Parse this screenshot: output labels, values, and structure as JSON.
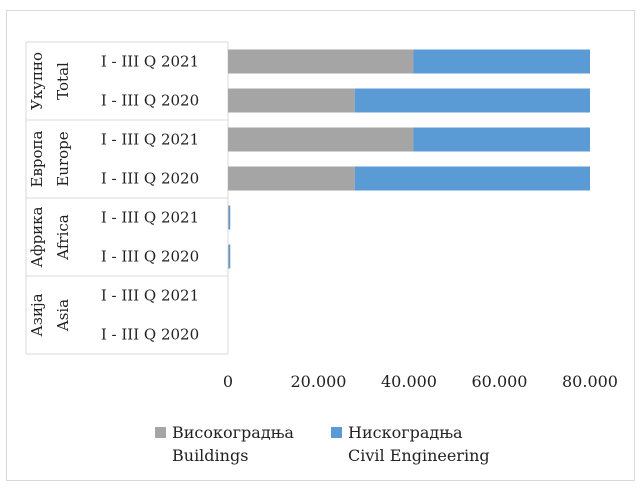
{
  "chart_data": {
    "type": "bar",
    "orientation": "horizontal",
    "stacked": true,
    "groups": [
      {
        "line1": "Укупно",
        "line2": "Total"
      },
      {
        "line1": "Европа",
        "line2": "Europe"
      },
      {
        "line1": "Африка",
        "line2": "Africa"
      },
      {
        "line1": "Азија",
        "line2": "Asia"
      }
    ],
    "categories": [
      "I - III Q 2021",
      "I - III Q 2020",
      "I - III Q 2021",
      "I - III Q 2020",
      "I - III Q 2021",
      "I - III Q 2020",
      "I - III Q 2021",
      "I - III Q 2020"
    ],
    "series": [
      {
        "name_line1": "Високоградња",
        "name_line2": "Buildings",
        "color": "#a5a5a5",
        "values": [
          41000,
          28000,
          41000,
          28000,
          200,
          200,
          0,
          0
        ]
      },
      {
        "name_line1": "Нискоградња",
        "name_line2": "Civil Engineering",
        "color": "#5b9bd5",
        "values": [
          39000,
          52000,
          39000,
          52000,
          300,
          300,
          0,
          0
        ]
      }
    ],
    "xlim": [
      0,
      80000
    ],
    "xticks": [
      "0",
      "20.000",
      "40.000",
      "60.000",
      "80.000"
    ],
    "xtick_values": [
      0,
      20000,
      40000,
      60000,
      80000
    ],
    "legend_position": "bottom",
    "grid": false
  }
}
